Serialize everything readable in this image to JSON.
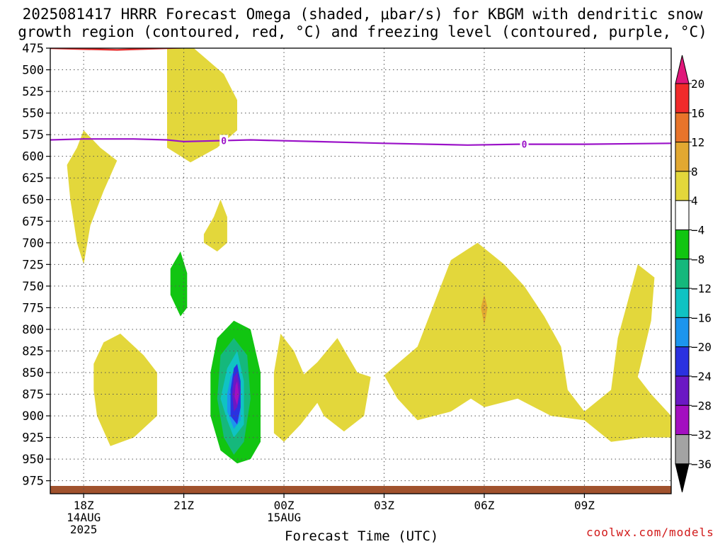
{
  "title": "2025081417 HRRR Forecast Omega (shaded, μbar/s) for KBGM with dendritic snow growth region (contoured, red, °C) and freezing level (contoured, purple, °C)",
  "credit": "coolwx.com/models",
  "chart_data": {
    "type": "time-height contour",
    "xlabel": "Forecast Time (UTC)",
    "ylabel": "",
    "x_ticks": [
      {
        "hour": 18,
        "label": "18Z",
        "sub": [
          "14AUG",
          "2025"
        ]
      },
      {
        "hour": 21,
        "label": "21Z",
        "sub": []
      },
      {
        "hour": 24,
        "label": "00Z",
        "sub": [
          "15AUG"
        ]
      },
      {
        "hour": 27,
        "label": "03Z",
        "sub": []
      },
      {
        "hour": 30,
        "label": "06Z",
        "sub": []
      },
      {
        "hour": 33,
        "label": "09Z",
        "sub": []
      }
    ],
    "x_range_hours_from_00z_14aug": [
      17,
      35.6
    ],
    "y_pressure_levels_mb": [
      475,
      500,
      525,
      550,
      575,
      600,
      625,
      650,
      675,
      700,
      725,
      750,
      775,
      800,
      825,
      850,
      875,
      900,
      925,
      950,
      975
    ],
    "y_range_mb": [
      475,
      990
    ],
    "grid": "dotted",
    "legend": {
      "placement": "right",
      "unit": "μbar/s",
      "labels": [
        "20",
        "16",
        "12",
        "8",
        "4",
        "−4",
        "−8",
        "−12",
        "−16",
        "−20",
        "−24",
        "−28",
        "−32",
        "−36"
      ],
      "colors_top_to_bottom": [
        "#e0177a",
        "#f02a2a",
        "#e8742a",
        "#e2a831",
        "#e3d73b",
        "#ffffff",
        "#11c511",
        "#15b87c",
        "#10c3c3",
        "#1c95ee",
        "#2a31e0",
        "#6b18c4",
        "#a30fc0",
        "#a3a3a3",
        "#000000"
      ]
    },
    "freezing_level": {
      "color": "#9b12c8",
      "label": "0",
      "points_hour_mb": [
        [
          17,
          581
        ],
        [
          18,
          580
        ],
        [
          19.5,
          580
        ],
        [
          20.5,
          581
        ],
        [
          21,
          583
        ],
        [
          22,
          582
        ],
        [
          23,
          581
        ],
        [
          25,
          583
        ],
        [
          27,
          585
        ],
        [
          29.5,
          587
        ],
        [
          31,
          586
        ],
        [
          33,
          586
        ],
        [
          35.6,
          585
        ]
      ]
    },
    "dgz_contour": {
      "color": "#e83030",
      "points_hour_mb": [
        [
          17,
          475
        ],
        [
          18,
          476
        ],
        [
          19,
          477
        ],
        [
          20.5,
          475
        ],
        [
          21.3,
          474
        ]
      ]
    },
    "terrain": {
      "color": "#a0522d",
      "top_mb": 981
    },
    "omega_regions": [
      {
        "level": "4 to 8",
        "color": "#e3d73b",
        "points_hour_mb": [
          [
            20.5,
            475
          ],
          [
            21.3,
            475
          ],
          [
            22.2,
            505
          ],
          [
            22.6,
            535
          ],
          [
            22.6,
            570
          ],
          [
            22,
            590
          ],
          [
            21.2,
            607
          ],
          [
            20.5,
            590
          ],
          [
            20.5,
            520
          ]
        ]
      },
      {
        "level": "4 to 8",
        "color": "#e3d73b",
        "points_hour_mb": [
          [
            17.5,
            610
          ],
          [
            17.8,
            590
          ],
          [
            18,
            570
          ],
          [
            18.5,
            590
          ],
          [
            19,
            605
          ],
          [
            18.6,
            640
          ],
          [
            18.2,
            680
          ],
          [
            18,
            725
          ],
          [
            17.8,
            700
          ],
          [
            17.6,
            650
          ]
        ]
      },
      {
        "level": "4 to 8",
        "color": "#e3d73b",
        "points_hour_mb": [
          [
            21.6,
            690
          ],
          [
            21.9,
            670
          ],
          [
            22.1,
            650
          ],
          [
            22.3,
            670
          ],
          [
            22.3,
            700
          ],
          [
            22,
            710
          ],
          [
            21.6,
            700
          ]
        ]
      },
      {
        "level": "4 to 8",
        "color": "#e3d73b",
        "points_hour_mb": [
          [
            18.3,
            840
          ],
          [
            18.6,
            815
          ],
          [
            19.1,
            805
          ],
          [
            19.8,
            830
          ],
          [
            20.2,
            850
          ],
          [
            20.2,
            900
          ],
          [
            19.5,
            925
          ],
          [
            18.8,
            935
          ],
          [
            18.4,
            900
          ],
          [
            18.3,
            870
          ]
        ]
      },
      {
        "level": "4 to 8",
        "color": "#e3d73b",
        "points_hour_mb": [
          [
            23.9,
            805
          ],
          [
            24.3,
            825
          ],
          [
            24.6,
            852
          ],
          [
            25,
            838
          ],
          [
            25.6,
            810
          ],
          [
            26.2,
            850
          ],
          [
            26.6,
            855
          ],
          [
            26.4,
            900
          ],
          [
            25.8,
            918
          ],
          [
            25.2,
            900
          ],
          [
            25,
            885
          ],
          [
            24.5,
            910
          ],
          [
            24,
            930
          ],
          [
            23.7,
            920
          ],
          [
            23.7,
            850
          ]
        ]
      },
      {
        "level": "4 to 8",
        "color": "#e3d73b",
        "points_hour_mb": [
          [
            27,
            853
          ],
          [
            28,
            820
          ],
          [
            29,
            720
          ],
          [
            29.8,
            700
          ],
          [
            30.6,
            725
          ],
          [
            31.2,
            750
          ],
          [
            31.8,
            785
          ],
          [
            32.3,
            820
          ],
          [
            32.5,
            870
          ],
          [
            33,
            895
          ],
          [
            33.8,
            870
          ],
          [
            34,
            810
          ],
          [
            34.6,
            725
          ],
          [
            35.1,
            740
          ],
          [
            35,
            790
          ],
          [
            34.6,
            855
          ],
          [
            35,
            875
          ],
          [
            35.6,
            900
          ],
          [
            35.6,
            925
          ],
          [
            34.8,
            925
          ],
          [
            33.8,
            930
          ],
          [
            33,
            905
          ],
          [
            32,
            900
          ],
          [
            31,
            880
          ],
          [
            30,
            890
          ],
          [
            29.6,
            880
          ],
          [
            29,
            895
          ],
          [
            28.5,
            900
          ],
          [
            28,
            905
          ],
          [
            27.4,
            880
          ]
        ]
      },
      {
        "level": "8 to 12",
        "color": "#e2a831",
        "points_hour_mb": [
          [
            29.9,
            775
          ],
          [
            30,
            760
          ],
          [
            30.1,
            775
          ],
          [
            30,
            795
          ]
        ]
      },
      {
        "level": "-4 to -8",
        "color": "#11c511",
        "points_hour_mb": [
          [
            20.6,
            730
          ],
          [
            20.9,
            710
          ],
          [
            21.1,
            735
          ],
          [
            21.1,
            775
          ],
          [
            20.9,
            785
          ],
          [
            20.6,
            760
          ]
        ]
      },
      {
        "level": "-4 to -8",
        "color": "#11c511",
        "points_hour_mb": [
          [
            22,
            810
          ],
          [
            22.5,
            790
          ],
          [
            23,
            800
          ],
          [
            23.3,
            850
          ],
          [
            23.3,
            930
          ],
          [
            23,
            950
          ],
          [
            22.6,
            955
          ],
          [
            22.1,
            940
          ],
          [
            21.8,
            900
          ],
          [
            21.8,
            850
          ]
        ]
      },
      {
        "level": "-8 to -12",
        "color": "#15b87c",
        "points_hour_mb": [
          [
            22.1,
            830
          ],
          [
            22.5,
            810
          ],
          [
            22.9,
            830
          ],
          [
            23,
            880
          ],
          [
            22.8,
            930
          ],
          [
            22.5,
            945
          ],
          [
            22.2,
            925
          ],
          [
            22,
            880
          ]
        ]
      },
      {
        "level": "-12 to -16",
        "color": "#10c3c3",
        "points_hour_mb": [
          [
            22.3,
            845
          ],
          [
            22.6,
            825
          ],
          [
            22.8,
            860
          ],
          [
            22.8,
            910
          ],
          [
            22.5,
            925
          ],
          [
            22.3,
            905
          ],
          [
            22.1,
            880
          ]
        ]
      },
      {
        "level": "-16 to -20",
        "color": "#1c95ee",
        "points_hour_mb": [
          [
            22.4,
            855
          ],
          [
            22.6,
            840
          ],
          [
            22.7,
            870
          ],
          [
            22.7,
            905
          ],
          [
            22.5,
            915
          ],
          [
            22.3,
            895
          ],
          [
            22.3,
            875
          ]
        ]
      },
      {
        "level": "-20 to -24",
        "color": "#2a31e0",
        "points_hour_mb": [
          [
            22.5,
            845
          ],
          [
            22.6,
            840
          ],
          [
            22.7,
            860
          ],
          [
            22.7,
            890
          ],
          [
            22.6,
            910
          ],
          [
            22.4,
            900
          ],
          [
            22.4,
            870
          ]
        ]
      },
      {
        "level": "-24 to -28",
        "color": "#6b18c4",
        "points_hour_mb": [
          [
            22.5,
            855
          ],
          [
            22.6,
            850
          ],
          [
            22.7,
            870
          ],
          [
            22.6,
            890
          ],
          [
            22.5,
            895
          ],
          [
            22.45,
            875
          ]
        ]
      },
      {
        "level": "-28 to -32",
        "color": "#a30fc0",
        "points_hour_mb": [
          [
            22.55,
            865
          ],
          [
            22.6,
            860
          ],
          [
            22.65,
            875
          ],
          [
            22.6,
            888
          ],
          [
            22.52,
            878
          ]
        ]
      }
    ]
  }
}
